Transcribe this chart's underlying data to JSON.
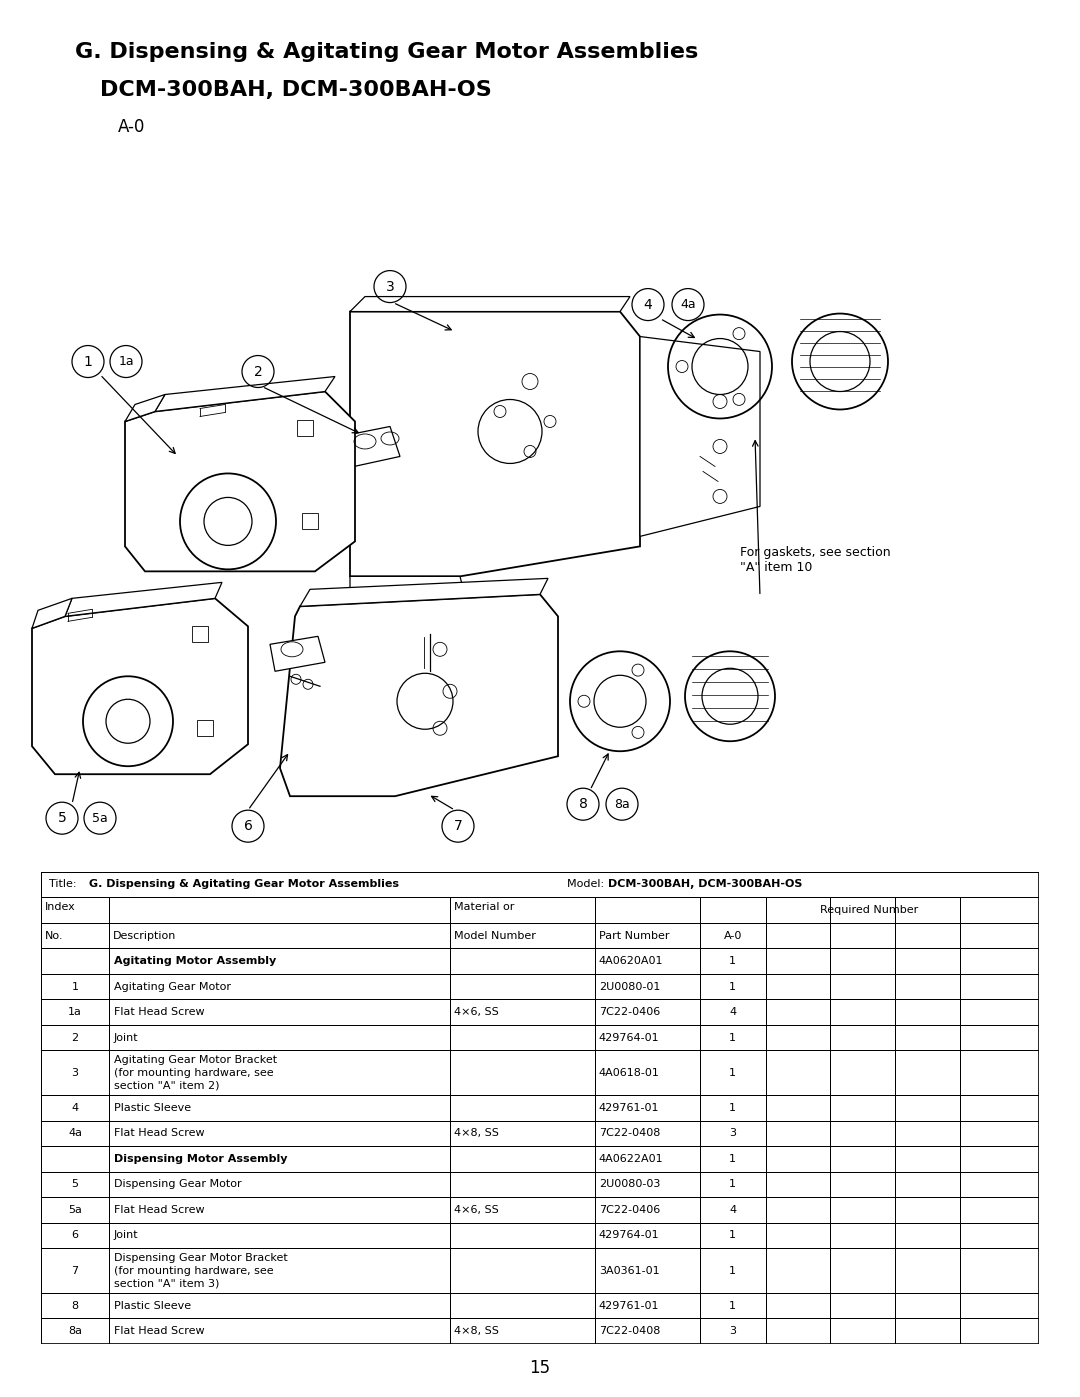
{
  "title_line1": "G. Dispensing & Agitating Gear Motor Assemblies",
  "title_line2": "DCM-300BAH, DCM-300BAH-OS",
  "title_line3": "A-0",
  "page_number": "15",
  "section_agitating": "Agitating Motor Assembly",
  "section_dispensing": "Dispensing Motor Assembly",
  "agitating_part_number": "4A0620A01",
  "agitating_qty": "1",
  "dispensing_part_number": "4A0622A01",
  "dispensing_qty": "1",
  "rows": [
    {
      "index": "1",
      "desc": "Agitating Gear Motor",
      "material": "",
      "part": "2U0080-01",
      "a0": "1"
    },
    {
      "index": "1a",
      "desc": "Flat Head Screw",
      "material": "4×6, SS",
      "part": "7C22-0406",
      "a0": "4"
    },
    {
      "index": "2",
      "desc": "Joint",
      "material": "",
      "part": "429764-01",
      "a0": "1"
    },
    {
      "index": "3",
      "desc": "Agitating Gear Motor Bracket\n(for mounting hardware, see\nsection \"A\" item 2)",
      "material": "",
      "part": "4A0618-01",
      "a0": "1"
    },
    {
      "index": "4",
      "desc": "Plastic Sleeve",
      "material": "",
      "part": "429761-01",
      "a0": "1"
    },
    {
      "index": "4a",
      "desc": "Flat Head Screw",
      "material": "4×8, SS",
      "part": "7C22-0408",
      "a0": "3"
    },
    {
      "index": "5",
      "desc": "Dispensing Gear Motor",
      "material": "",
      "part": "2U0080-03",
      "a0": "1"
    },
    {
      "index": "5a",
      "desc": "Flat Head Screw",
      "material": "4×6, SS",
      "part": "7C22-0406",
      "a0": "4"
    },
    {
      "index": "6",
      "desc": "Joint",
      "material": "",
      "part": "429764-01",
      "a0": "1"
    },
    {
      "index": "7",
      "desc": "Dispensing Gear Motor Bracket\n(for mounting hardware, see\nsection \"A\" item 3)",
      "material": "",
      "part": "3A0361-01",
      "a0": "1"
    },
    {
      "index": "8",
      "desc": "Plastic Sleeve",
      "material": "",
      "part": "429761-01",
      "a0": "1"
    },
    {
      "index": "8a",
      "desc": "Flat Head Screw",
      "material": "4×8, SS",
      "part": "7C22-0408",
      "a0": "3"
    }
  ],
  "gasket_note": "For gaskets, see section\n\"A\" item 10",
  "bg_color": "#ffffff",
  "text_color": "#000000"
}
